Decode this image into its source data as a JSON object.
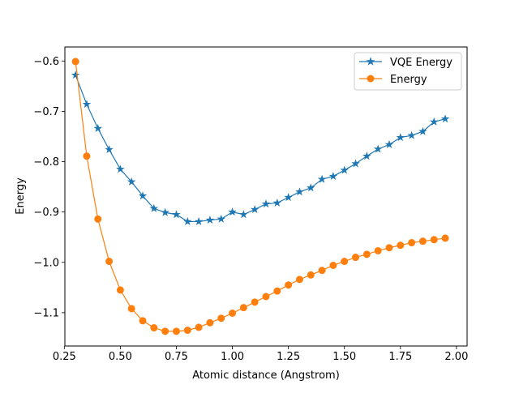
{
  "chart_data": {
    "type": "line",
    "title": "",
    "xlabel": "Atomic distance (Angstrom)",
    "ylabel": "Energy",
    "xlim": [
      0.2525,
      2.0475
    ],
    "ylim": [
      -1.1662,
      -0.5722
    ],
    "grid": false,
    "legend_position": "top-right",
    "x_ticks": [
      {
        "value": 0.25,
        "label": "0.25"
      },
      {
        "value": 0.5,
        "label": "0.50"
      },
      {
        "value": 0.75,
        "label": "0.75"
      },
      {
        "value": 1.0,
        "label": "1.00"
      },
      {
        "value": 1.25,
        "label": "1.25"
      },
      {
        "value": 1.5,
        "label": "1.50"
      },
      {
        "value": 1.75,
        "label": "1.75"
      },
      {
        "value": 2.0,
        "label": "2.00"
      }
    ],
    "y_ticks": [
      {
        "value": -0.6,
        "label": "−0.6"
      },
      {
        "value": -0.7,
        "label": "−0.7"
      },
      {
        "value": -0.8,
        "label": "−0.8"
      },
      {
        "value": -0.9,
        "label": "−0.9"
      },
      {
        "value": -1.0,
        "label": "−1.0"
      },
      {
        "value": -1.1,
        "label": "−1.1"
      }
    ],
    "x": [
      0.3,
      0.35,
      0.4,
      0.45,
      0.5,
      0.55,
      0.6,
      0.65,
      0.7,
      0.75,
      0.8,
      0.85,
      0.9,
      0.95,
      1.0,
      1.05,
      1.1,
      1.15,
      1.2,
      1.25,
      1.3,
      1.35,
      1.4,
      1.45,
      1.5,
      1.55,
      1.6,
      1.65,
      1.7,
      1.75,
      1.8,
      1.85,
      1.9,
      1.95
    ],
    "series": [
      {
        "name": "VQE Energy",
        "marker": "star",
        "color": "#1f77b4",
        "values": [
          -0.628,
          -0.686,
          -0.734,
          -0.776,
          -0.815,
          -0.84,
          -0.868,
          -0.893,
          -0.901,
          -0.905,
          -0.919,
          -0.919,
          -0.916,
          -0.914,
          -0.9,
          -0.905,
          -0.895,
          -0.884,
          -0.882,
          -0.871,
          -0.86,
          -0.852,
          -0.835,
          -0.829,
          -0.817,
          -0.804,
          -0.789,
          -0.775,
          -0.766,
          -0.752,
          -0.748,
          -0.74,
          -0.721,
          -0.715
        ]
      },
      {
        "name": "Energy",
        "marker": "circle",
        "color": "#ff7f0e",
        "values": [
          -0.601,
          -0.789,
          -0.914,
          -0.998,
          -1.055,
          -1.092,
          -1.116,
          -1.13,
          -1.137,
          -1.137,
          -1.135,
          -1.129,
          -1.12,
          -1.111,
          -1.101,
          -1.09,
          -1.079,
          -1.068,
          -1.057,
          -1.045,
          -1.034,
          -1.025,
          -1.016,
          -1.006,
          -0.998,
          -0.99,
          -0.984,
          -0.977,
          -0.971,
          -0.966,
          -0.961,
          -0.958,
          -0.955,
          -0.952
        ]
      }
    ]
  }
}
